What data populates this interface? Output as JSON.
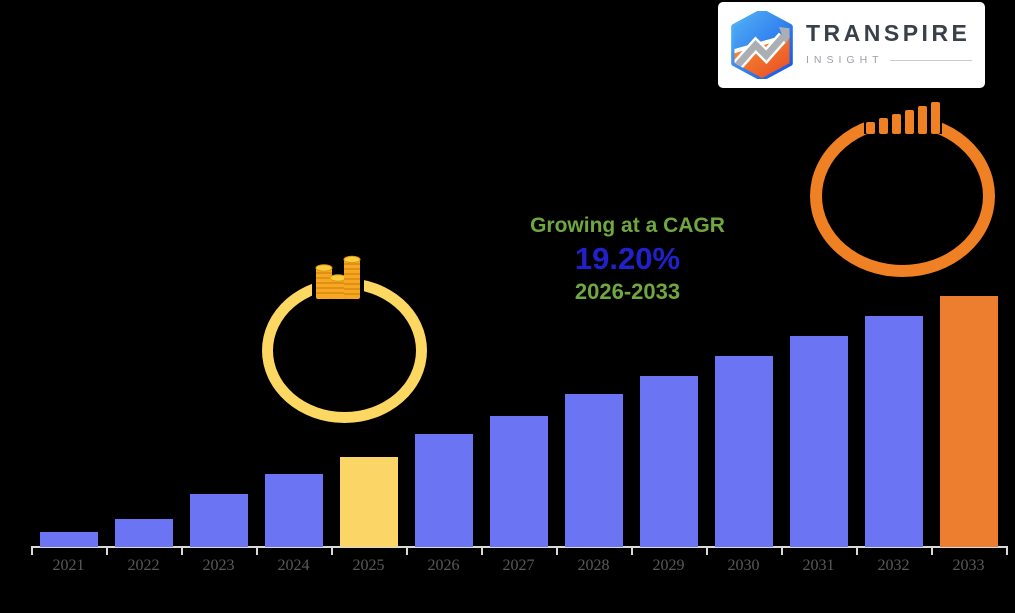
{
  "logo": {
    "title": "TRANSPIRE",
    "subtitle": "INSIGHT",
    "card_background": "#FFFFFF",
    "title_color": "#3A4048",
    "subtitle_color": "#9AA0A6"
  },
  "callout": {
    "line1": "Growing at a CAGR",
    "line2": "19.20%",
    "line3": "2026-2033",
    "label_color": "#70A83F",
    "value_color": "#2121CC"
  },
  "annotations": {
    "coins_ring_color": "#FCD862",
    "growth_ring_color": "#EF8023",
    "coin_gold": "#F7A823",
    "coin_gold_light": "#FFCE3F",
    "coins_icon": "coin-stacks-icon",
    "growth_icon": "growth-bars-icon"
  },
  "chart_data": {
    "type": "bar",
    "title": "",
    "xlabel": "",
    "ylabel": "",
    "categories": [
      "2021",
      "2022",
      "2023",
      "2024",
      "2025",
      "2026",
      "2027",
      "2028",
      "2029",
      "2030",
      "2031",
      "2032",
      "2033"
    ],
    "values": [
      6,
      11,
      21,
      29,
      36,
      45,
      52,
      61,
      68,
      76,
      84,
      92,
      100
    ],
    "values_note": "relative bar heights, 2033 = 100; chart displays no value axis or data labels",
    "colors": [
      "#6B74F2",
      "#6B74F2",
      "#6B74F2",
      "#6B74F2",
      "#FBD667",
      "#6B74F2",
      "#6B74F2",
      "#6B74F2",
      "#6B74F2",
      "#6B74F2",
      "#6B74F2",
      "#6B74F2",
      "#ED7D2F"
    ],
    "base_bar_color": "#6B74F2",
    "highlight_2025_color": "#FBD667",
    "highlight_2033_color": "#ED7D2F",
    "axis_line_color": "#D9D9D9",
    "tick_label_color": "#595959",
    "grid": "off",
    "legend": "none"
  }
}
